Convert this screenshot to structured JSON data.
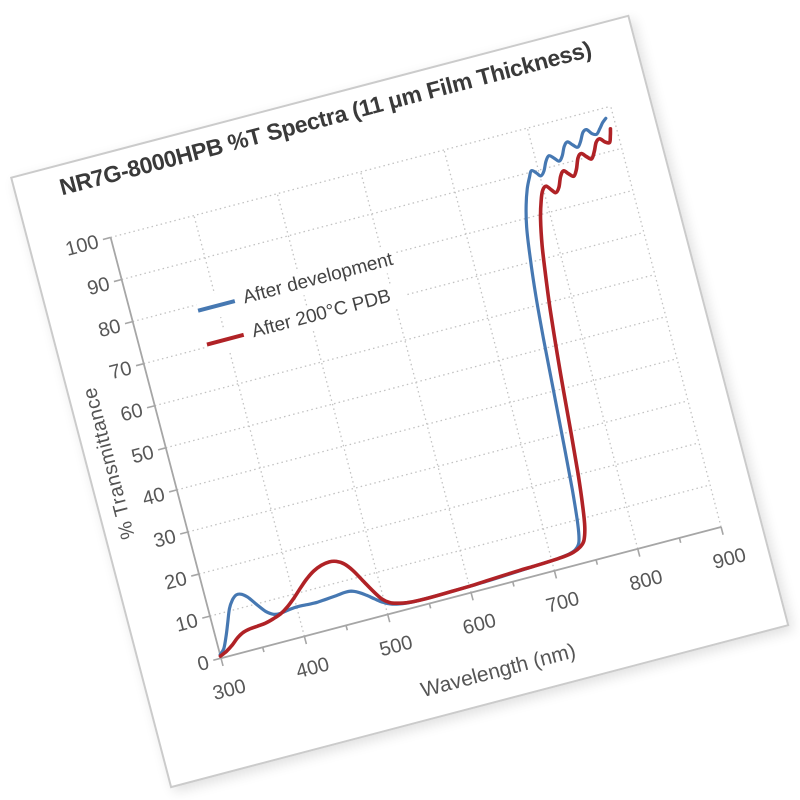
{
  "chart_data": {
    "type": "line",
    "title": "NR7G-8000HPB %T Spectra (11 μm Film Thickness)",
    "xlabel": "Wavelength (nm)",
    "ylabel": "% Transmittance",
    "xlim": [
      300,
      900
    ],
    "ylim": [
      0,
      100
    ],
    "xticks": [
      300,
      400,
      500,
      600,
      700,
      800,
      900
    ],
    "xminor_ticks": [
      350,
      450,
      550,
      650,
      750,
      850
    ],
    "yticks": [
      0,
      10,
      20,
      30,
      40,
      50,
      60,
      70,
      80,
      90,
      100
    ],
    "grid": "dotted",
    "legend_position": "inside-top-left",
    "series": [
      {
        "name": "After development",
        "color": "#4678b2",
        "stroke_width": 3.2,
        "points": [
          [
            300,
            0.8
          ],
          [
            306,
            2.0
          ],
          [
            312,
            4.5
          ],
          [
            318,
            7.5
          ],
          [
            324,
            10.5
          ],
          [
            330,
            12.3
          ],
          [
            336,
            13.2
          ],
          [
            342,
            13.0
          ],
          [
            348,
            12.0
          ],
          [
            356,
            9.8
          ],
          [
            364,
            7.8
          ],
          [
            372,
            6.7
          ],
          [
            380,
            6.5
          ],
          [
            390,
            6.8
          ],
          [
            400,
            7.0
          ],
          [
            412,
            6.9
          ],
          [
            424,
            6.8
          ],
          [
            436,
            7.0
          ],
          [
            448,
            7.2
          ],
          [
            458,
            7.4
          ],
          [
            466,
            7.3
          ],
          [
            474,
            6.6
          ],
          [
            482,
            5.5
          ],
          [
            490,
            4.2
          ],
          [
            498,
            3.0
          ],
          [
            506,
            2.2
          ],
          [
            515,
            1.7
          ],
          [
            525,
            1.4
          ],
          [
            540,
            1.3
          ],
          [
            560,
            1.3
          ],
          [
            580,
            1.4
          ],
          [
            600,
            1.5
          ],
          [
            620,
            1.6
          ],
          [
            640,
            1.8
          ],
          [
            660,
            2.0
          ],
          [
            680,
            2.2
          ],
          [
            700,
            2.4
          ],
          [
            712,
            2.6
          ],
          [
            722,
            2.9
          ],
          [
            730,
            3.5
          ],
          [
            736,
            5.0
          ],
          [
            740,
            9.0
          ],
          [
            744,
            17.0
          ],
          [
            748,
            28.0
          ],
          [
            752,
            40.0
          ],
          [
            756,
            52.0
          ],
          [
            760,
            62.0
          ],
          [
            765,
            71.0
          ],
          [
            770,
            78.0
          ],
          [
            776,
            83.0
          ],
          [
            782,
            86.5
          ],
          [
            788,
            89.0
          ],
          [
            792,
            90.3
          ],
          [
            797,
            89.5
          ],
          [
            801,
            88.6
          ],
          [
            806,
            89.5
          ],
          [
            811,
            91.5
          ],
          [
            816,
            92.6
          ],
          [
            821,
            91.8
          ],
          [
            826,
            90.8
          ],
          [
            831,
            91.8
          ],
          [
            836,
            93.8
          ],
          [
            841,
            94.6
          ],
          [
            846,
            93.6
          ],
          [
            851,
            92.8
          ],
          [
            856,
            94.0
          ],
          [
            861,
            95.8
          ],
          [
            866,
            96.2
          ],
          [
            871,
            95.0
          ],
          [
            876,
            94.6
          ],
          [
            881,
            95.6
          ],
          [
            886,
            96.8
          ],
          [
            891,
            97.6
          ]
        ]
      },
      {
        "name": "After 200°C PDB",
        "color": "#b02226",
        "stroke_width": 3.6,
        "points": [
          [
            300,
            0.5
          ],
          [
            308,
            1.2
          ],
          [
            316,
            2.2
          ],
          [
            324,
            3.5
          ],
          [
            332,
            4.4
          ],
          [
            340,
            4.8
          ],
          [
            350,
            5.0
          ],
          [
            360,
            5.2
          ],
          [
            370,
            5.7
          ],
          [
            380,
            6.4
          ],
          [
            390,
            7.6
          ],
          [
            400,
            9.2
          ],
          [
            410,
            11.0
          ],
          [
            420,
            12.7
          ],
          [
            430,
            14.0
          ],
          [
            440,
            14.8
          ],
          [
            450,
            15.1
          ],
          [
            458,
            14.8
          ],
          [
            466,
            13.8
          ],
          [
            474,
            11.8
          ],
          [
            482,
            9.0
          ],
          [
            490,
            6.2
          ],
          [
            498,
            3.8
          ],
          [
            506,
            2.5
          ],
          [
            515,
            1.9
          ],
          [
            525,
            1.5
          ],
          [
            540,
            1.3
          ],
          [
            560,
            1.3
          ],
          [
            580,
            1.4
          ],
          [
            600,
            1.5
          ],
          [
            620,
            1.7
          ],
          [
            640,
            1.9
          ],
          [
            660,
            2.1
          ],
          [
            680,
            2.2
          ],
          [
            700,
            2.4
          ],
          [
            715,
            2.6
          ],
          [
            727,
            3.0
          ],
          [
            736,
            3.8
          ],
          [
            742,
            5.0
          ],
          [
            747,
            8.0
          ],
          [
            751,
            13.0
          ],
          [
            755,
            20.0
          ],
          [
            759,
            29.0
          ],
          [
            763,
            39.0
          ],
          [
            767,
            48.0
          ],
          [
            772,
            58.0
          ],
          [
            777,
            66.0
          ],
          [
            782,
            73.0
          ],
          [
            788,
            79.0
          ],
          [
            794,
            83.0
          ],
          [
            799,
            85.3
          ],
          [
            804,
            86.0
          ],
          [
            809,
            84.8
          ],
          [
            813,
            84.0
          ],
          [
            818,
            85.0
          ],
          [
            823,
            87.3
          ],
          [
            828,
            88.4
          ],
          [
            833,
            87.4
          ],
          [
            838,
            86.6
          ],
          [
            843,
            88.0
          ],
          [
            848,
            90.4
          ],
          [
            853,
            91.2
          ],
          [
            858,
            90.2
          ],
          [
            863,
            89.4
          ],
          [
            868,
            90.8
          ],
          [
            873,
            92.8
          ],
          [
            878,
            93.4
          ],
          [
            883,
            92.4
          ],
          [
            888,
            92.0
          ],
          [
            891,
            93.5
          ],
          [
            893,
            95.0
          ]
        ]
      }
    ]
  },
  "style": {
    "grid_color": "#c2c2c2",
    "axis_color": "#a6a6a6",
    "tick_label_color": "#575757",
    "title_color": "#3a3a3a",
    "page_border_color": "#cbcbcb"
  }
}
